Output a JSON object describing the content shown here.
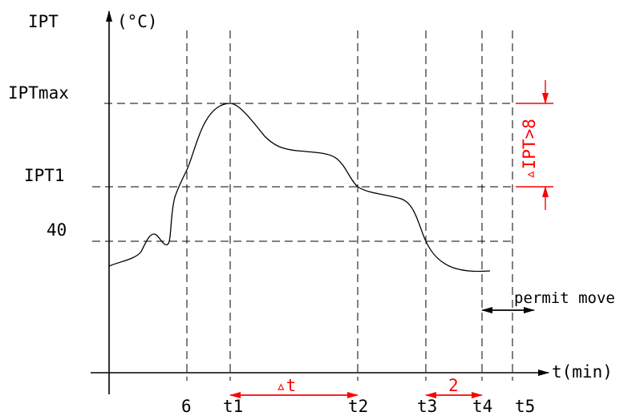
{
  "y_axis": {
    "name": "IPT",
    "unit": "(°C)"
  },
  "x_axis": {
    "label": "t(min)"
  },
  "levels": {
    "max": "IPTmax",
    "ipt1": "IPT1",
    "forty": "40"
  },
  "time_marks": {
    "six": "6",
    "t1": "t1",
    "t2": "t2",
    "t3": "t3",
    "t4": "t4",
    "t5": "t5"
  },
  "annotations": {
    "delta_t": "▵t",
    "two": "2",
    "delta_ipt": "▵IPT>8",
    "permit": "permit move"
  },
  "colors": {
    "line": "#000000",
    "accent": "#ff0000"
  }
}
